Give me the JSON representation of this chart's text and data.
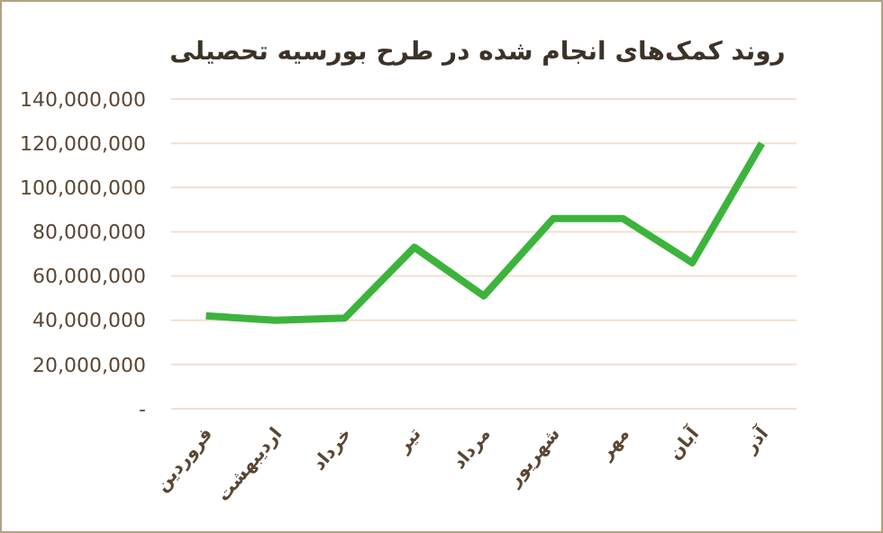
{
  "chart_data": {
    "type": "line",
    "title": "روند کمک‌های انجام شده در طرح بورسیه تحصیلی",
    "categories": [
      "فروردین",
      "اردیبهشت",
      "خرداد",
      "تیر",
      "مرداد",
      "شهریور",
      "مهر",
      "آبان",
      "آذر"
    ],
    "series": [
      {
        "color": "#3cb43c",
        "values": [
          42000000,
          40000000,
          41000000,
          73000000,
          51000000,
          86000000,
          86000000,
          66000000,
          120000000
        ]
      }
    ],
    "ylim": [
      0,
      140000000
    ],
    "yticks": [
      {
        "value": 0,
        "label": "-"
      },
      {
        "value": 20000000,
        "label": "20,000,000"
      },
      {
        "value": 40000000,
        "label": "40,000,000"
      },
      {
        "value": 60000000,
        "label": "60,000,000"
      },
      {
        "value": 80000000,
        "label": "80,000,000"
      },
      {
        "value": 100000000,
        "label": "100,000,000"
      },
      {
        "value": 120000000,
        "label": "120,000,000"
      },
      {
        "value": 140000000,
        "label": "140,000,000"
      }
    ],
    "grid": "y",
    "marker": "none",
    "line_style": "solid"
  }
}
